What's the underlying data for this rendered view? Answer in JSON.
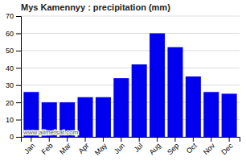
{
  "chart_data": {
    "type": "bar",
    "title": "Mys Kamennyy : precipitation (mm)",
    "categories": [
      "Jan",
      "Feb",
      "Mar",
      "Apr",
      "May",
      "Jun",
      "Jul",
      "Aug",
      "Sep",
      "Oct",
      "Nov",
      "Dec"
    ],
    "values": [
      26,
      20,
      20,
      23,
      23,
      34,
      42,
      60,
      52,
      35,
      26,
      25
    ],
    "color": "#0000ee",
    "ylim": [
      0,
      70
    ],
    "yticks": [
      0,
      10,
      20,
      30,
      40,
      50,
      60,
      70
    ],
    "grid": true,
    "annotation": "www.allmetsat.com"
  }
}
